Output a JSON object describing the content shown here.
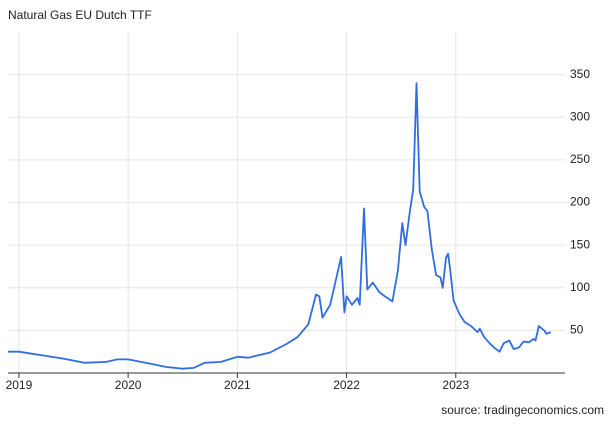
{
  "chart_data": {
    "type": "line",
    "title": "Natural Gas EU Dutch TTF",
    "source": "source: tradingeconomics.com",
    "x": [
      2018.9,
      2019.0,
      2019.2,
      2019.4,
      2019.6,
      2019.8,
      2019.9,
      2020.0,
      2020.2,
      2020.35,
      2020.5,
      2020.6,
      2020.7,
      2020.85,
      2021.0,
      2021.1,
      2021.3,
      2021.45,
      2021.55,
      2021.65,
      2021.72,
      2021.75,
      2021.78,
      2021.85,
      2021.95,
      2021.98,
      2022.0,
      2022.05,
      2022.1,
      2022.12,
      2022.16,
      2022.19,
      2022.24,
      2022.3,
      2022.35,
      2022.42,
      2022.47,
      2022.51,
      2022.54,
      2022.58,
      2022.61,
      2022.64,
      2022.67,
      2022.71,
      2022.74,
      2022.78,
      2022.82,
      2022.86,
      2022.88,
      2022.91,
      2022.93,
      2022.95,
      2022.98,
      2023.03,
      2023.08,
      2023.14,
      2023.2,
      2023.22,
      2023.26,
      2023.31,
      2023.35,
      2023.4,
      2023.44,
      2023.49,
      2023.53,
      2023.58,
      2023.62,
      2023.67,
      2023.71,
      2023.73,
      2023.76,
      2023.81,
      2023.83,
      2023.87
    ],
    "values": [
      25,
      25,
      21,
      17,
      12,
      13,
      16,
      16,
      11,
      7,
      5,
      6,
      12,
      13,
      19,
      18,
      24,
      34,
      42,
      57,
      92,
      90,
      65,
      80,
      136,
      71,
      90,
      80,
      88,
      80,
      193,
      98,
      106,
      95,
      90,
      84,
      120,
      176,
      150,
      190,
      215,
      340,
      213,
      195,
      190,
      145,
      115,
      112,
      100,
      135,
      140,
      120,
      85,
      70,
      60,
      55,
      48,
      52,
      42,
      35,
      30,
      25,
      35,
      38,
      28,
      30,
      37,
      36,
      40,
      38,
      55,
      50,
      46,
      48
    ],
    "color": "#2f6de1",
    "xlim": [
      2018.9,
      2024.0
    ],
    "xticks": [
      2019,
      2020,
      2021,
      2022,
      2023
    ],
    "ylim": [
      0,
      400
    ],
    "yticks": [
      50,
      100,
      150,
      200,
      250,
      300,
      350
    ],
    "grid": true
  }
}
